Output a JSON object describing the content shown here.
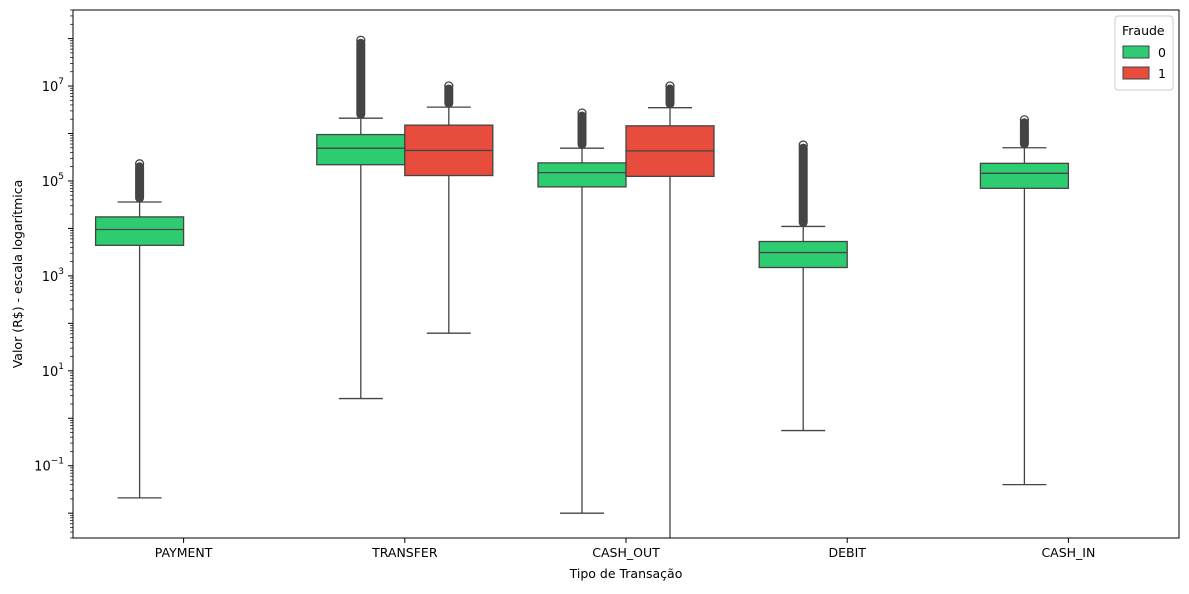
{
  "chart_data": {
    "type": "box",
    "title": "",
    "xlabel": "Tipo de Transação",
    "ylabel": "Valor (R$) - escala logarítmica",
    "yscale": "log",
    "ylim": [
      0.003,
      400000000
    ],
    "yticks": [
      {
        "value": 0.1,
        "base": "10",
        "exp": "−1"
      },
      {
        "value": 10,
        "base": "10",
        "exp": "1"
      },
      {
        "value": 1000,
        "base": "10",
        "exp": "3"
      },
      {
        "value": 100000,
        "base": "10",
        "exp": "5"
      },
      {
        "value": 10000000,
        "base": "10",
        "exp": "7"
      }
    ],
    "categories": [
      "PAYMENT",
      "TRANSFER",
      "CASH_OUT",
      "DEBIT",
      "CASH_IN"
    ],
    "legend": {
      "title": "Fraude",
      "position": "top-right"
    },
    "grid": false,
    "series": [
      {
        "name": "0",
        "color": "#2ecc71",
        "boxes": [
          {
            "category": "PAYMENT",
            "whisker_low": 0.021,
            "q1": 4400,
            "median": 9500,
            "q3": 17500,
            "whisker_high": 36000,
            "outlier_max": 230000
          },
          {
            "category": "TRANSFER",
            "whisker_low": 2.6,
            "q1": 220000,
            "median": 490000,
            "q3": 950000,
            "whisker_high": 2100000,
            "outlier_max": 92000000
          },
          {
            "category": "CASH_OUT",
            "whisker_low": 0.01,
            "q1": 75000,
            "median": 150000,
            "q3": 240000,
            "whisker_high": 490000,
            "outlier_max": 2700000
          },
          {
            "category": "DEBIT",
            "whisker_low": 0.55,
            "q1": 1500,
            "median": 3100,
            "q3": 5300,
            "whisker_high": 11000,
            "outlier_max": 570000
          },
          {
            "category": "CASH_IN",
            "whisker_low": 0.04,
            "q1": 70000,
            "median": 145000,
            "q3": 235000,
            "whisker_high": 500000,
            "outlier_max": 1950000
          }
        ]
      },
      {
        "name": "1",
        "color": "#e74c3c",
        "boxes": [
          {
            "category": "TRANSFER",
            "whisker_low": 62,
            "q1": 130000,
            "median": 440000,
            "q3": 1500000,
            "whisker_high": 3600000,
            "outlier_max": 10000000
          },
          {
            "category": "CASH_OUT",
            "whisker_low": 0,
            "q1": 125000,
            "median": 430000,
            "q3": 1450000,
            "whisker_high": 3500000,
            "outlier_max": 10000000
          }
        ]
      }
    ]
  }
}
